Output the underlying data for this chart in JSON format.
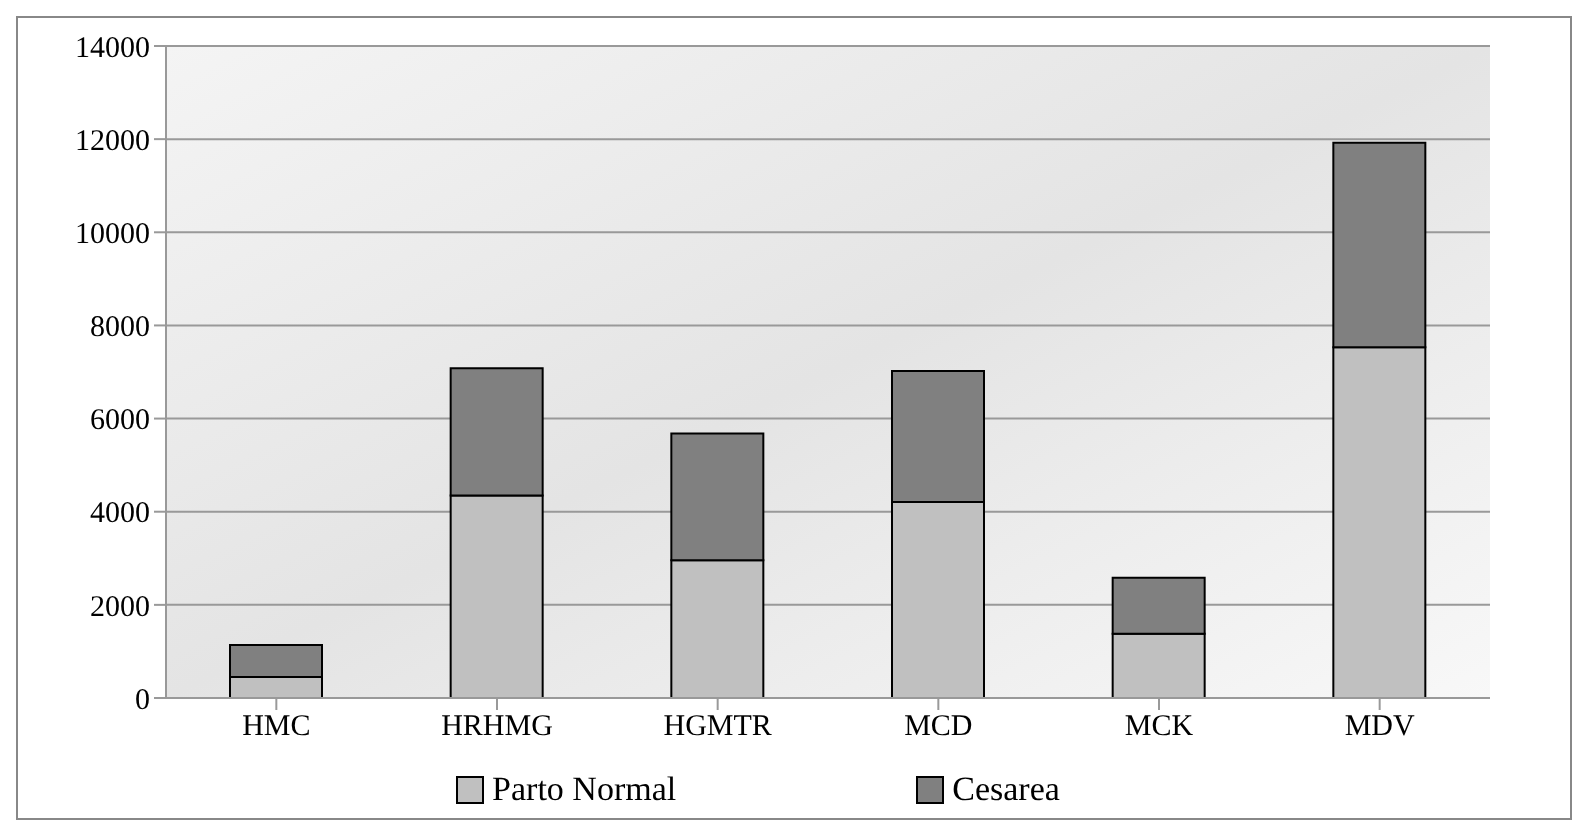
{
  "chart_data": {
    "type": "bar",
    "stacked": true,
    "categories": [
      "HMC",
      "HRHMG",
      "HGMTR",
      "MCD",
      "MCK",
      "MDV"
    ],
    "series": [
      {
        "name": "Parto Normal",
        "color": "#c0c0c0",
        "values": [
          450,
          4350,
          2960,
          4210,
          1380,
          7530
        ]
      },
      {
        "name": "Cesarea",
        "color": "#808080",
        "values": [
          690,
          2730,
          2720,
          2810,
          1200,
          4390
        ]
      }
    ],
    "ylim": [
      0,
      14000
    ],
    "yticks": [
      0,
      2000,
      4000,
      6000,
      8000,
      10000,
      12000,
      14000
    ],
    "grid": "y",
    "legend": "bottom"
  }
}
